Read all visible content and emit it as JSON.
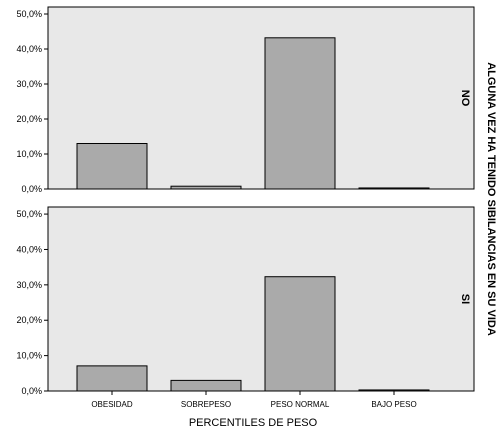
{
  "chart_data": {
    "type": "bar",
    "xlabel": "PERCENTILES DE PESO",
    "facet_label": "ALGUNA VEZ HA TENIDO SIBILANCIAS EN SU VIDA",
    "categories": [
      "OBESIDAD",
      "SOBREPESO",
      "PESO NORMAL",
      "BAJO PESO"
    ],
    "y_ticks": [
      "0,0%",
      "10,0%",
      "20,0%",
      "30,0%",
      "40,0%",
      "50,0%"
    ],
    "ylim": [
      0,
      52
    ],
    "panels": [
      {
        "name": "NO",
        "values": [
          13.0,
          0.8,
          43.2,
          0.3
        ]
      },
      {
        "name": "SI",
        "values": [
          7.1,
          3.0,
          32.3,
          0.3
        ]
      }
    ],
    "colors": {
      "bar": "#aaaaaa",
      "panel": "#e8e8e8",
      "stroke": "#000000"
    },
    "grid": false
  }
}
